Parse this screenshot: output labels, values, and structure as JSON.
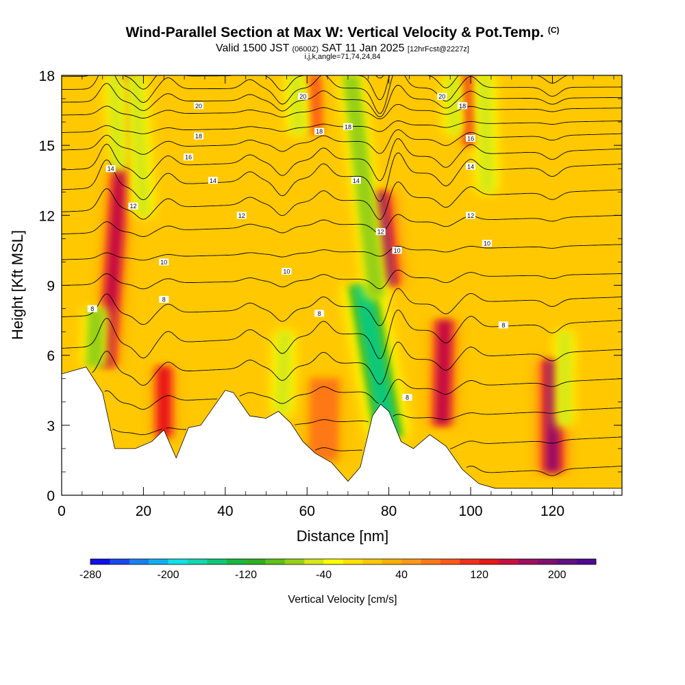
{
  "title": {
    "main": "Wind-Parallel Section at Max W: Vertical Velocity & Pot.Temp.",
    "mark": "(C)",
    "valid_prefix": "Valid 1500 JST",
    "valid_utc": "(0600Z)",
    "valid_date": "SAT 11 Jan 2025",
    "forecast": "[12hrFcst@2227z]",
    "info": "i,j,k,angle=71,74,24,84"
  },
  "chart_data": {
    "type": "heatmap",
    "xlabel": "Distance [nm]",
    "ylabel": "Height [Kft MSL]",
    "xlim": [
      0,
      137
    ],
    "ylim": [
      0,
      18
    ],
    "x_ticks": [
      0,
      20,
      40,
      60,
      80,
      100,
      120
    ],
    "y_ticks": [
      0,
      3,
      6,
      9,
      12,
      15,
      18
    ],
    "colorbar": {
      "title": "Vertical Velocity [cm/s]",
      "min": -280,
      "max": 240,
      "step": 20,
      "tick_values": [
        -280,
        -200,
        -120,
        -40,
        40,
        120,
        200
      ],
      "tick_labels": [
        "-280",
        "-200",
        "-120",
        "-40",
        "40",
        "120",
        "200"
      ],
      "colors": [
        "#1010e8",
        "#1848f0",
        "#1880f0",
        "#10b0f0",
        "#10e0e8",
        "#10d8b0",
        "#10c878",
        "#18b840",
        "#30b020",
        "#60c018",
        "#98d018",
        "#d8e818",
        "#ffff00",
        "#ffe000",
        "#ffc800",
        "#ffb000",
        "#ff9818",
        "#ff7818",
        "#ff5818",
        "#f03018",
        "#e81818",
        "#c81040",
        "#a01060",
        "#801070",
        "#601080",
        "#500890"
      ]
    },
    "terrain_kft": [
      [
        0,
        5.2
      ],
      [
        6,
        5.5
      ],
      [
        10,
        4.4
      ],
      [
        13,
        2.0
      ],
      [
        18,
        2.0
      ],
      [
        22,
        2.3
      ],
      [
        25,
        2.8
      ],
      [
        28,
        1.6
      ],
      [
        31,
        2.9
      ],
      [
        34,
        3.0
      ],
      [
        38,
        4.0
      ],
      [
        40,
        4.5
      ],
      [
        42,
        4.4
      ],
      [
        46,
        3.4
      ],
      [
        50,
        3.3
      ],
      [
        53,
        3.6
      ],
      [
        56,
        3.1
      ],
      [
        59,
        2.3
      ],
      [
        62,
        1.8
      ],
      [
        66,
        1.4
      ],
      [
        70,
        0.6
      ],
      [
        73,
        1.2
      ],
      [
        76,
        3.4
      ],
      [
        78,
        3.9
      ],
      [
        80,
        3.6
      ],
      [
        83,
        2.3
      ],
      [
        86,
        2.0
      ],
      [
        90,
        2.6
      ],
      [
        94,
        2.1
      ],
      [
        98,
        1.1
      ],
      [
        102,
        0.5
      ],
      [
        106,
        0.3
      ],
      [
        112,
        0.3
      ],
      [
        137,
        0.3
      ]
    ],
    "updrafts": [
      {
        "x": 11,
        "y0": 5.5,
        "y1": 18,
        "tilt": 1.2,
        "w": 2.4,
        "peak_cms": 140
      },
      {
        "x": 25,
        "y0": 2.5,
        "y1": 5.5,
        "tilt": 0,
        "w": 2.2,
        "peak_cms": 120
      },
      {
        "x": 64,
        "y0": 1.5,
        "y1": 5.0,
        "tilt": 0.3,
        "w": 3.0,
        "peak_cms": 60
      },
      {
        "x": 80,
        "y0": 9.0,
        "y1": 13.0,
        "tilt": -1.8,
        "w": 2.6,
        "peak_cms": 160
      },
      {
        "x": 93,
        "y0": 3.0,
        "y1": 7.5,
        "tilt": 0.4,
        "w": 2.6,
        "peak_cms": 140
      },
      {
        "x": 120,
        "y0": 1.0,
        "y1": 5.8,
        "tilt": 0,
        "w": 2.6,
        "peak_cms": 160
      },
      {
        "x": 100,
        "y0": 15.0,
        "y1": 18,
        "tilt": -0.8,
        "w": 1.6,
        "peak_cms": 100
      },
      {
        "x": 62,
        "y0": 15.5,
        "y1": 18,
        "tilt": -0.5,
        "w": 1.5,
        "peak_cms": 80
      }
    ],
    "downdrafts": [
      {
        "x": 14,
        "y0": 14,
        "y1": 18,
        "tilt": -0.6,
        "w": 1.6,
        "peak_cms": -60
      },
      {
        "x": 20,
        "y0": 12,
        "y1": 18,
        "tilt": -1.0,
        "w": 1.6,
        "peak_cms": -60
      },
      {
        "x": 8,
        "y0": 5.5,
        "y1": 8,
        "tilt": 0.6,
        "w": 1.8,
        "peak_cms": -80
      },
      {
        "x": 54,
        "y0": 3.5,
        "y1": 7,
        "tilt": 0.4,
        "w": 1.6,
        "peak_cms": -60
      },
      {
        "x": 80,
        "y0": 2.5,
        "y1": 9,
        "tilt": -3.0,
        "w": 3.2,
        "peak_cms": -160
      },
      {
        "x": 77,
        "y0": 8.5,
        "y1": 18,
        "tilt": -2.0,
        "w": 1.8,
        "peak_cms": -80
      },
      {
        "x": 58,
        "y0": 15.5,
        "y1": 18,
        "tilt": -1.0,
        "w": 1.6,
        "peak_cms": -60
      },
      {
        "x": 96,
        "y0": 15.5,
        "y1": 18,
        "tilt": -0.6,
        "w": 1.4,
        "peak_cms": -60
      },
      {
        "x": 104,
        "y0": 13,
        "y1": 18,
        "tilt": -0.4,
        "w": 1.6,
        "peak_cms": -60
      },
      {
        "x": 123,
        "y0": 3.0,
        "y1": 7,
        "tilt": 0,
        "w": 1.4,
        "peak_cms": -60
      }
    ],
    "theta_contours": [
      {
        "value": 8,
        "y_left": 6.3,
        "y_right": 7.5
      },
      {
        "value": 10,
        "y_left": 9.0,
        "y_right": 9.5
      },
      {
        "value": 12,
        "y_left": 11.2,
        "y_right": 12.0
      },
      {
        "value": 14,
        "y_left": 13.1,
        "y_right": 14.2
      },
      {
        "value": 16,
        "y_left": 14.8,
        "y_right": 15.5
      },
      {
        "value": 18,
        "y_left": 16.3,
        "y_right": 16.6
      },
      {
        "value": 20,
        "y_left": 17.4,
        "y_right": 17.5
      }
    ],
    "contour_labels": [
      {
        "text": "8",
        "x": 7.5,
        "y": 8.0
      },
      {
        "text": "8",
        "x": 25,
        "y": 8.4
      },
      {
        "text": "8",
        "x": 63,
        "y": 7.8
      },
      {
        "text": "8",
        "x": 108,
        "y": 7.3
      },
      {
        "text": "8",
        "x": 84.5,
        "y": 4.2
      },
      {
        "text": "10",
        "x": 25,
        "y": 10.0
      },
      {
        "text": "10",
        "x": 55,
        "y": 9.6
      },
      {
        "text": "10",
        "x": 82,
        "y": 10.5
      },
      {
        "text": "10",
        "x": 104,
        "y": 10.8
      },
      {
        "text": "12",
        "x": 17.5,
        "y": 12.4
      },
      {
        "text": "12",
        "x": 44,
        "y": 12.0
      },
      {
        "text": "12",
        "x": 78,
        "y": 11.3
      },
      {
        "text": "12",
        "x": 100,
        "y": 12.0
      },
      {
        "text": "14",
        "x": 12,
        "y": 14.0
      },
      {
        "text": "14",
        "x": 37,
        "y": 13.5
      },
      {
        "text": "14",
        "x": 72,
        "y": 13.5
      },
      {
        "text": "14",
        "x": 100,
        "y": 14.1
      },
      {
        "text": "16",
        "x": 31,
        "y": 14.5
      },
      {
        "text": "16",
        "x": 100,
        "y": 15.3
      },
      {
        "text": "18",
        "x": 33.5,
        "y": 15.4
      },
      {
        "text": "18",
        "x": 63,
        "y": 15.6
      },
      {
        "text": "18",
        "x": 70,
        "y": 15.8
      },
      {
        "text": "18",
        "x": 98,
        "y": 16.7
      },
      {
        "text": "20",
        "x": 33.5,
        "y": 16.7
      },
      {
        "text": "20",
        "x": 59,
        "y": 17.1
      },
      {
        "text": "20",
        "x": 93,
        "y": 17.1
      }
    ]
  }
}
